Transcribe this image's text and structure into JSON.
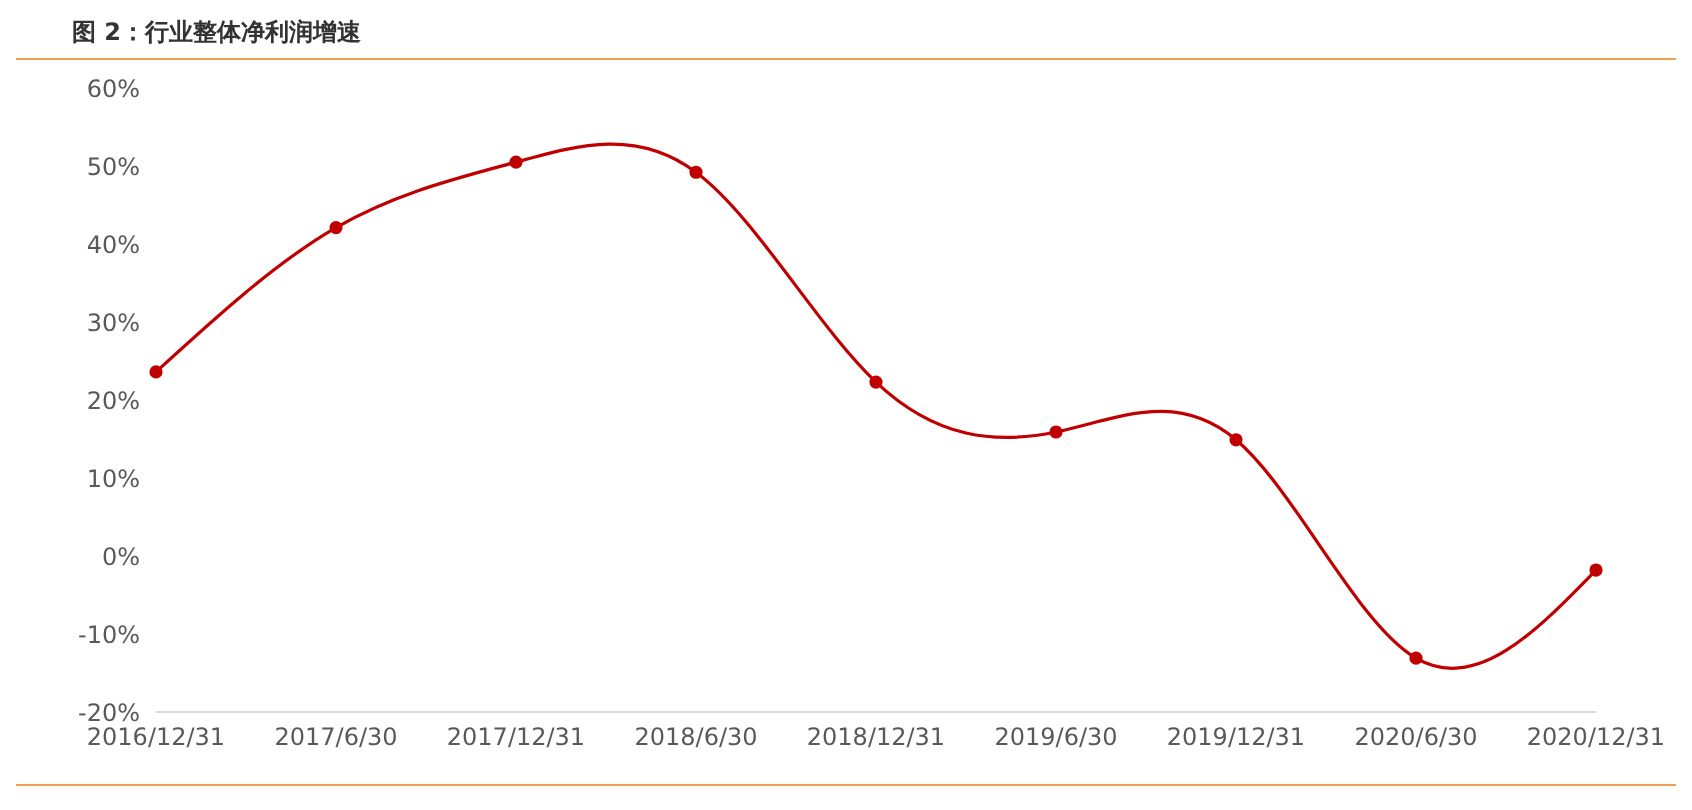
{
  "chart_data": {
    "type": "line",
    "title": "图 2：行业整体净利润增速",
    "categories": [
      "2016/12/31",
      "2017/6/30",
      "2017/12/31",
      "2018/6/30",
      "2018/12/31",
      "2019/6/30",
      "2019/12/31",
      "2020/6/30",
      "2020/12/31"
    ],
    "series": [
      {
        "color": "#c00000",
        "values": [
          23.6,
          42.1,
          50.5,
          49.2,
          22.3,
          15.9,
          14.9,
          -13.1,
          -1.8
        ]
      }
    ],
    "ylim": [
      -20,
      60
    ],
    "yticks": [
      {
        "value": -20,
        "label": "-20%"
      },
      {
        "value": -10,
        "label": "-10%"
      },
      {
        "value": 0,
        "label": "0%"
      },
      {
        "value": 10,
        "label": "10%"
      },
      {
        "value": 20,
        "label": "20%"
      },
      {
        "value": 30,
        "label": "30%"
      },
      {
        "value": 40,
        "label": "40%"
      },
      {
        "value": 50,
        "label": "50%"
      },
      {
        "value": 60,
        "label": "60%"
      }
    ],
    "grid": false,
    "legend": false,
    "marker": "circle",
    "line_style": "solid"
  }
}
